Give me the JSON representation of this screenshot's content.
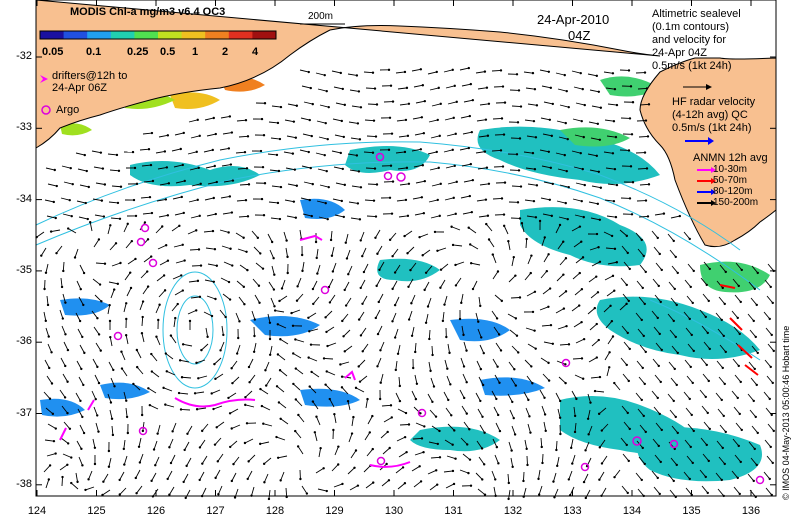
{
  "colorbar": {
    "title": "MODIS Chl-a mg/m3 v6.4 OC3",
    "ticks": [
      "0.05",
      "0.1",
      "0.25",
      "0.5",
      "1",
      "2",
      "4"
    ],
    "colors": [
      "#1a10a0",
      "#2050e0",
      "#20a0f0",
      "#20d0b0",
      "#50e050",
      "#c0e020",
      "#f0c020",
      "#f08020",
      "#e03020",
      "#a01010"
    ]
  },
  "drifters_label": [
    "drifters@12h to",
    "24-Apr 06Z"
  ],
  "argo_label": "Argo",
  "bathy_label": "200m",
  "date": "24-Apr-2010",
  "time": "04Z",
  "altimetry_label": [
    "Altimetric sealevel",
    "(0.1m contours)",
    "and velocity for",
    "24-Apr 04Z",
    "0.5m/s (1kt 24h)"
  ],
  "hf_radar_label": [
    "HF radar velocity",
    "(4-12h avg) QC",
    "0.5m/s (1kt 24h)"
  ],
  "anmn": {
    "title": "ANMN 12h avg",
    "items": [
      {
        "label": "10-30m",
        "color": "#ff00ff"
      },
      {
        "label": "50-70m",
        "color": "#ff0000"
      },
      {
        "label": "80-120m",
        "color": "#0000ff"
      },
      {
        "label": "150-200m",
        "color": "#000000"
      }
    ]
  },
  "credit": "© IMOS 04-May-2013 05:00:46 Hobart time",
  "axes": {
    "lon_ticks": [
      "124",
      "125",
      "126",
      "127",
      "128",
      "129",
      "130",
      "131",
      "132",
      "133",
      "134",
      "135",
      "136"
    ],
    "lat_ticks": [
      "-32",
      "-33",
      "-34",
      "-35",
      "-36",
      "-37",
      "-38"
    ]
  },
  "colors": {
    "land": "#f8c090",
    "drifter": "#ff00ff",
    "argo": "#dd00dd",
    "anmn_red": "#ff0000",
    "hf_blue": "#0000ff",
    "ssh_contour": "#30c0e0"
  }
}
